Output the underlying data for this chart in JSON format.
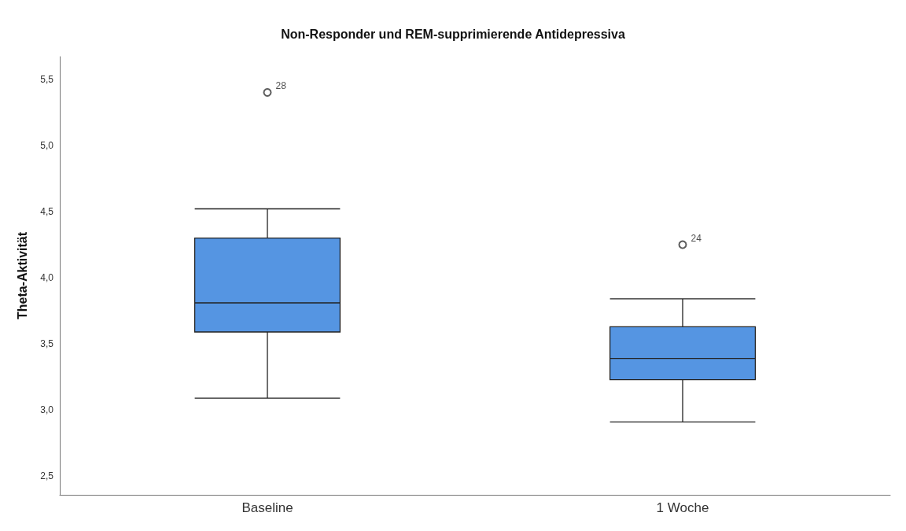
{
  "chart_data": {
    "type": "box",
    "title": "Non-Responder und REM-supprimierende Antidepressiva",
    "ylabel": "Theta-Aktivität",
    "categories": [
      "Baseline",
      "1 Woche"
    ],
    "boxes": [
      {
        "low": 3.09,
        "q1": 3.59,
        "median": 3.81,
        "q3": 4.3,
        "high": 4.52,
        "outliers": [
          5.4
        ]
      },
      {
        "low": 2.91,
        "q1": 3.23,
        "median": 3.39,
        "q3": 3.63,
        "high": 3.84,
        "outliers": [
          4.25
        ]
      }
    ],
    "color": "#5595e2",
    "ylim": [
      2.36,
      5.67
    ],
    "yticks": [
      {
        "value": 2.5,
        "label": "2,5"
      },
      {
        "value": 3,
        "label": "3,0"
      },
      {
        "value": 3.5,
        "label": "3,5"
      },
      {
        "value": 4,
        "label": "4,0"
      },
      {
        "value": 4.5,
        "label": "4,5"
      },
      {
        "value": 5,
        "label": "5,0"
      },
      {
        "value": 5.5,
        "label": "5,5"
      }
    ],
    "annotations": [
      "28",
      "24"
    ],
    "grid": false
  }
}
